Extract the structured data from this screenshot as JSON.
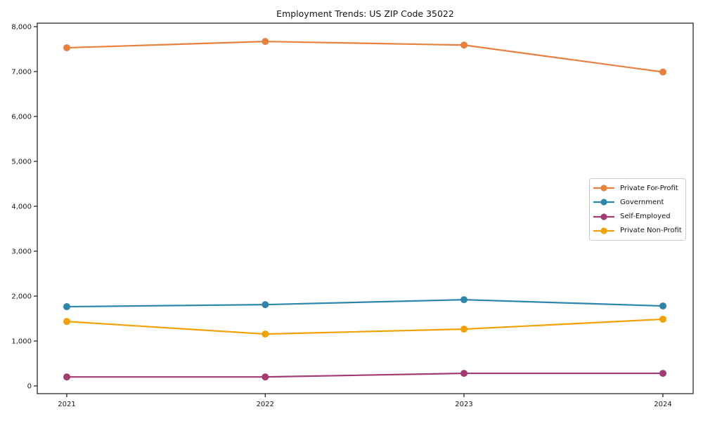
{
  "chart_data": {
    "type": "line",
    "title": "Employment Trends: US ZIP Code 35022",
    "xlabel": "",
    "ylabel": "",
    "categories": [
      "2021",
      "2022",
      "2023",
      "2024"
    ],
    "y_ticks": [
      0,
      1000,
      2000,
      3000,
      4000,
      5000,
      6000,
      7000,
      8000
    ],
    "y_tick_labels": [
      "0",
      "1,000",
      "2,000",
      "3,000",
      "4,000",
      "5,000",
      "6,000",
      "7,000",
      "8,000"
    ],
    "ylim": [
      -160,
      8080
    ],
    "grid": false,
    "legend_position": "center-right",
    "series": [
      {
        "name": "Private For-Profit",
        "color": "#e8803e",
        "values": [
          7530,
          7670,
          7590,
          6990
        ]
      },
      {
        "name": "Government",
        "color": "#2e86ab",
        "values": [
          1765,
          1810,
          1920,
          1780
        ]
      },
      {
        "name": "Self-Employed",
        "color": "#a23b72",
        "values": [
          200,
          200,
          280,
          280
        ]
      },
      {
        "name": "Private Non-Profit",
        "color": "#f2a104",
        "values": [
          1435,
          1155,
          1265,
          1485
        ]
      }
    ],
    "colors": {
      "spine": "#1a1a1a",
      "text": "#151515",
      "background": "#ffffff"
    }
  }
}
